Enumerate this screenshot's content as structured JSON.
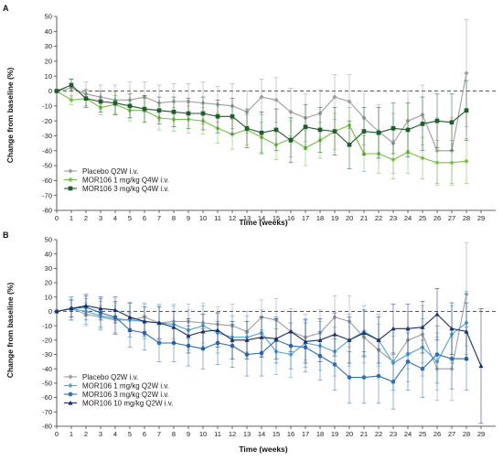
{
  "chart_data": [
    {
      "panel_label": "A",
      "type": "line",
      "xlabel": "Time (weeks)",
      "ylabel": "Change from baseline (%)",
      "xlim": [
        0,
        30
      ],
      "ylim": [
        -80,
        50
      ],
      "xticks": [
        0,
        1,
        2,
        3,
        4,
        5,
        6,
        7,
        8,
        9,
        10,
        11,
        12,
        13,
        14,
        15,
        16,
        17,
        18,
        19,
        20,
        21,
        22,
        23,
        24,
        25,
        26,
        27,
        28,
        29
      ],
      "yticks": [
        50,
        40,
        30,
        20,
        10,
        0,
        -10,
        -20,
        -30,
        -40,
        -50,
        -60,
        -70,
        -80
      ],
      "reference_line": 0,
      "legend_position": "bottom-left",
      "series": [
        {
          "name": "Placebo Q2W i.v.",
          "color": "#9e9e9e",
          "marker": "diamond",
          "x": [
            0,
            1,
            2,
            3,
            4,
            5,
            6,
            7,
            8,
            9,
            10,
            11,
            12,
            13,
            14,
            15,
            16,
            17,
            18,
            19,
            20,
            21,
            22,
            23,
            24,
            25,
            26,
            27,
            28
          ],
          "y": [
            0,
            2,
            -2,
            -4,
            -6,
            -6,
            -4,
            -8,
            -7,
            -7,
            -8,
            -9,
            -10,
            -14,
            -4,
            -6,
            -14,
            -18,
            -15,
            -4,
            -7,
            -18,
            -27,
            -35,
            -20,
            -16,
            -40,
            -40,
            12
          ],
          "err": [
            0,
            6,
            8,
            8,
            10,
            12,
            10,
            12,
            12,
            12,
            14,
            12,
            15,
            14,
            12,
            15,
            16,
            16,
            16,
            15,
            18,
            18,
            18,
            20,
            20,
            20,
            22,
            22,
            36
          ]
        },
        {
          "name": "MOR106 1 mg/kg Q4W i.v.",
          "color": "#76c043",
          "marker": "diamond",
          "x": [
            0,
            1,
            2,
            3,
            4,
            5,
            6,
            7,
            8,
            9,
            10,
            11,
            12,
            13,
            14,
            15,
            16,
            17,
            18,
            19,
            20,
            21,
            22,
            23,
            24,
            25,
            26,
            27,
            28
          ],
          "y": [
            0,
            -6,
            -5,
            -11,
            -9,
            -13,
            -13,
            -18,
            -19,
            -19,
            -20,
            -25,
            -29,
            -26,
            -31,
            -36,
            -32,
            -38,
            -33,
            -27,
            -23,
            -42,
            -42,
            -46,
            -41,
            -45,
            -48,
            -48,
            -47
          ],
          "err": [
            0,
            3,
            5,
            5,
            6,
            7,
            8,
            8,
            8,
            9,
            9,
            10,
            10,
            10,
            10,
            10,
            12,
            12,
            12,
            12,
            12,
            12,
            13,
            13,
            14,
            14,
            15,
            15,
            15
          ]
        },
        {
          "name": "MOR106 3 mg/kg Q4W i.v.",
          "color": "#1f5c2e",
          "marker": "square",
          "x": [
            0,
            1,
            2,
            3,
            4,
            5,
            6,
            7,
            8,
            9,
            10,
            11,
            12,
            13,
            14,
            15,
            16,
            17,
            18,
            19,
            20,
            21,
            22,
            23,
            24,
            25,
            26,
            27,
            28
          ],
          "y": [
            0,
            4,
            -5,
            -7,
            -8,
            -10,
            -12,
            -13,
            -14,
            -15,
            -15,
            -17,
            -17,
            -25,
            -28,
            -26,
            -33,
            -24,
            -26,
            -27,
            -36,
            -27,
            -28,
            -25,
            -26,
            -22,
            -20,
            -21,
            -13
          ],
          "err": [
            0,
            4,
            6,
            7,
            8,
            8,
            9,
            9,
            10,
            10,
            11,
            11,
            12,
            13,
            14,
            14,
            15,
            15,
            15,
            16,
            16,
            16,
            17,
            17,
            18,
            18,
            18,
            19,
            20
          ]
        }
      ]
    },
    {
      "panel_label": "B",
      "type": "line",
      "xlabel": "Time (weeks)",
      "ylabel": "Change from baseline (%)",
      "xlim": [
        0,
        30
      ],
      "ylim": [
        -80,
        50
      ],
      "xticks": [
        0,
        1,
        2,
        3,
        4,
        5,
        6,
        7,
        8,
        9,
        10,
        11,
        12,
        13,
        14,
        15,
        16,
        17,
        18,
        19,
        20,
        21,
        22,
        23,
        24,
        25,
        26,
        27,
        28,
        29
      ],
      "yticks": [
        50,
        40,
        30,
        20,
        10,
        0,
        -10,
        -20,
        -30,
        -40,
        -50,
        -60,
        -70,
        -80
      ],
      "reference_line": 0,
      "legend_position": "bottom-left",
      "series": [
        {
          "name": "Placebo Q2W i.v.",
          "color": "#9e9e9e",
          "marker": "diamond",
          "x": [
            0,
            1,
            2,
            3,
            4,
            5,
            6,
            7,
            8,
            9,
            10,
            11,
            12,
            13,
            14,
            15,
            16,
            17,
            18,
            19,
            20,
            21,
            22,
            23,
            24,
            25,
            26,
            27,
            28
          ],
          "y": [
            0,
            2,
            -2,
            -4,
            -6,
            -6,
            -4,
            -8,
            -7,
            -7,
            -8,
            -9,
            -10,
            -14,
            -4,
            -6,
            -14,
            -18,
            -15,
            -4,
            -7,
            -18,
            -27,
            -35,
            -20,
            -16,
            -40,
            -40,
            12
          ],
          "err": [
            0,
            6,
            8,
            8,
            10,
            12,
            10,
            12,
            12,
            12,
            14,
            12,
            15,
            14,
            12,
            15,
            16,
            16,
            16,
            15,
            18,
            18,
            18,
            20,
            20,
            20,
            22,
            22,
            36
          ]
        },
        {
          "name": "MOR106 1 mg/kg Q2W i.v.",
          "color": "#4da3dd",
          "marker": "diamond",
          "x": [
            0,
            1,
            2,
            3,
            4,
            5,
            6,
            7,
            8,
            9,
            10,
            11,
            12,
            13,
            14,
            15,
            16,
            17,
            18,
            19,
            20,
            21,
            22,
            23,
            24,
            25,
            26,
            27,
            28
          ],
          "y": [
            0,
            2,
            0,
            -3,
            -5,
            -6,
            -7,
            -8,
            -9,
            -13,
            -10,
            -15,
            -18,
            -18,
            -15,
            -28,
            -30,
            -22,
            -24,
            -28,
            -20,
            -14,
            -20,
            -36,
            -30,
            -25,
            -35,
            -16,
            -8
          ],
          "err": [
            0,
            8,
            9,
            10,
            11,
            12,
            12,
            13,
            13,
            14,
            14,
            14,
            15,
            15,
            16,
            16,
            16,
            17,
            17,
            17,
            18,
            18,
            18,
            19,
            19,
            20,
            20,
            20,
            22
          ]
        },
        {
          "name": "MOR106 3 mg/kg Q2W i.v.",
          "color": "#2e6fb5",
          "marker": "circle",
          "x": [
            0,
            1,
            2,
            3,
            4,
            5,
            6,
            7,
            8,
            9,
            10,
            11,
            12,
            13,
            14,
            15,
            16,
            17,
            18,
            19,
            20,
            21,
            22,
            23,
            24,
            25,
            26,
            27,
            28
          ],
          "y": [
            0,
            2,
            3,
            -1,
            -4,
            -13,
            -15,
            -22,
            -22,
            -24,
            -26,
            -22,
            -24,
            -30,
            -29,
            -20,
            -24,
            -25,
            -31,
            -37,
            -46,
            -46,
            -45,
            -49,
            -35,
            -40,
            -30,
            -33,
            -33
          ],
          "err": [
            0,
            8,
            9,
            10,
            11,
            12,
            12,
            13,
            13,
            14,
            14,
            15,
            15,
            15,
            16,
            16,
            16,
            17,
            17,
            18,
            18,
            18,
            19,
            19,
            20,
            20,
            20,
            21,
            22
          ]
        },
        {
          "name": "MOR106 10 mg/kg Q2W i.v.",
          "color": "#1b2f6b",
          "marker": "triangle",
          "x": [
            0,
            1,
            2,
            3,
            4,
            5,
            6,
            7,
            8,
            9,
            10,
            11,
            12,
            13,
            14,
            15,
            16,
            17,
            18,
            19,
            20,
            21,
            22,
            23,
            24,
            25,
            26,
            27,
            28,
            29
          ],
          "y": [
            0,
            2,
            4,
            2,
            1,
            -4,
            -7,
            -8,
            -11,
            -17,
            -14,
            -13,
            -20,
            -20,
            -18,
            -19,
            -14,
            -21,
            -20,
            -16,
            -20,
            -15,
            -20,
            -12,
            -12,
            -11,
            -2,
            -12,
            -14,
            -38
          ],
          "err": [
            0,
            6,
            7,
            8,
            9,
            10,
            10,
            11,
            11,
            12,
            12,
            12,
            13,
            13,
            14,
            14,
            14,
            15,
            15,
            15,
            16,
            16,
            16,
            17,
            17,
            18,
            18,
            18,
            20,
            40
          ]
        }
      ]
    }
  ]
}
